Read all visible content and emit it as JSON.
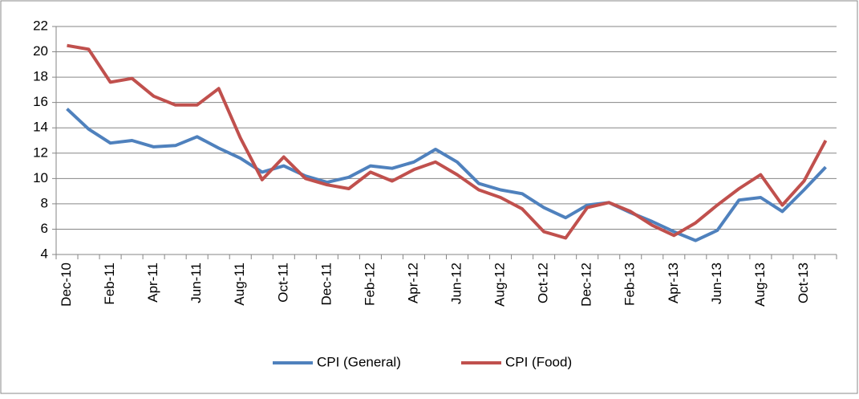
{
  "chart_data": {
    "type": "line",
    "categories": [
      "Dec-10",
      null,
      "Feb-11",
      null,
      "Apr-11",
      null,
      "Jun-11",
      null,
      "Aug-11",
      null,
      "Oct-11",
      null,
      "Dec-11",
      null,
      "Feb-12",
      null,
      "Apr-12",
      null,
      "Jun-12",
      null,
      "Aug-12",
      null,
      "Oct-12",
      null,
      "Dec-12",
      null,
      "Feb-13",
      null,
      "Apr-13",
      null,
      "Jun-13",
      null,
      "Aug-13",
      null,
      "Oct-13",
      null
    ],
    "series": [
      {
        "name": "CPI (General)",
        "color": "#4f81bd",
        "values": [
          15.5,
          13.9,
          12.8,
          13.0,
          12.5,
          12.6,
          13.3,
          12.4,
          11.6,
          10.5,
          11.0,
          10.2,
          9.7,
          10.1,
          11.0,
          10.8,
          11.3,
          12.3,
          11.3,
          9.6,
          9.1,
          8.8,
          7.7,
          6.9,
          7.9,
          8.1,
          7.3,
          6.6,
          5.8,
          5.1,
          5.9,
          8.3,
          8.5,
          7.4,
          9.1,
          10.9
        ]
      },
      {
        "name": "CPI (Food)",
        "color": "#c0504d",
        "values": [
          20.5,
          20.2,
          17.6,
          17.9,
          16.5,
          15.8,
          15.8,
          17.1,
          13.2,
          9.9,
          11.7,
          10.0,
          9.5,
          9.2,
          10.5,
          9.8,
          10.7,
          11.3,
          10.3,
          9.1,
          8.5,
          7.6,
          5.8,
          5.3,
          7.7,
          8.1,
          7.4,
          6.3,
          5.5,
          6.5,
          7.9,
          9.2,
          10.3,
          7.9,
          9.8,
          13.0
        ]
      }
    ],
    "ylim": [
      4,
      22
    ],
    "yticks": [
      4,
      6,
      8,
      10,
      12,
      14,
      16,
      18,
      20,
      22
    ],
    "grid": true,
    "legend": "bottom"
  }
}
